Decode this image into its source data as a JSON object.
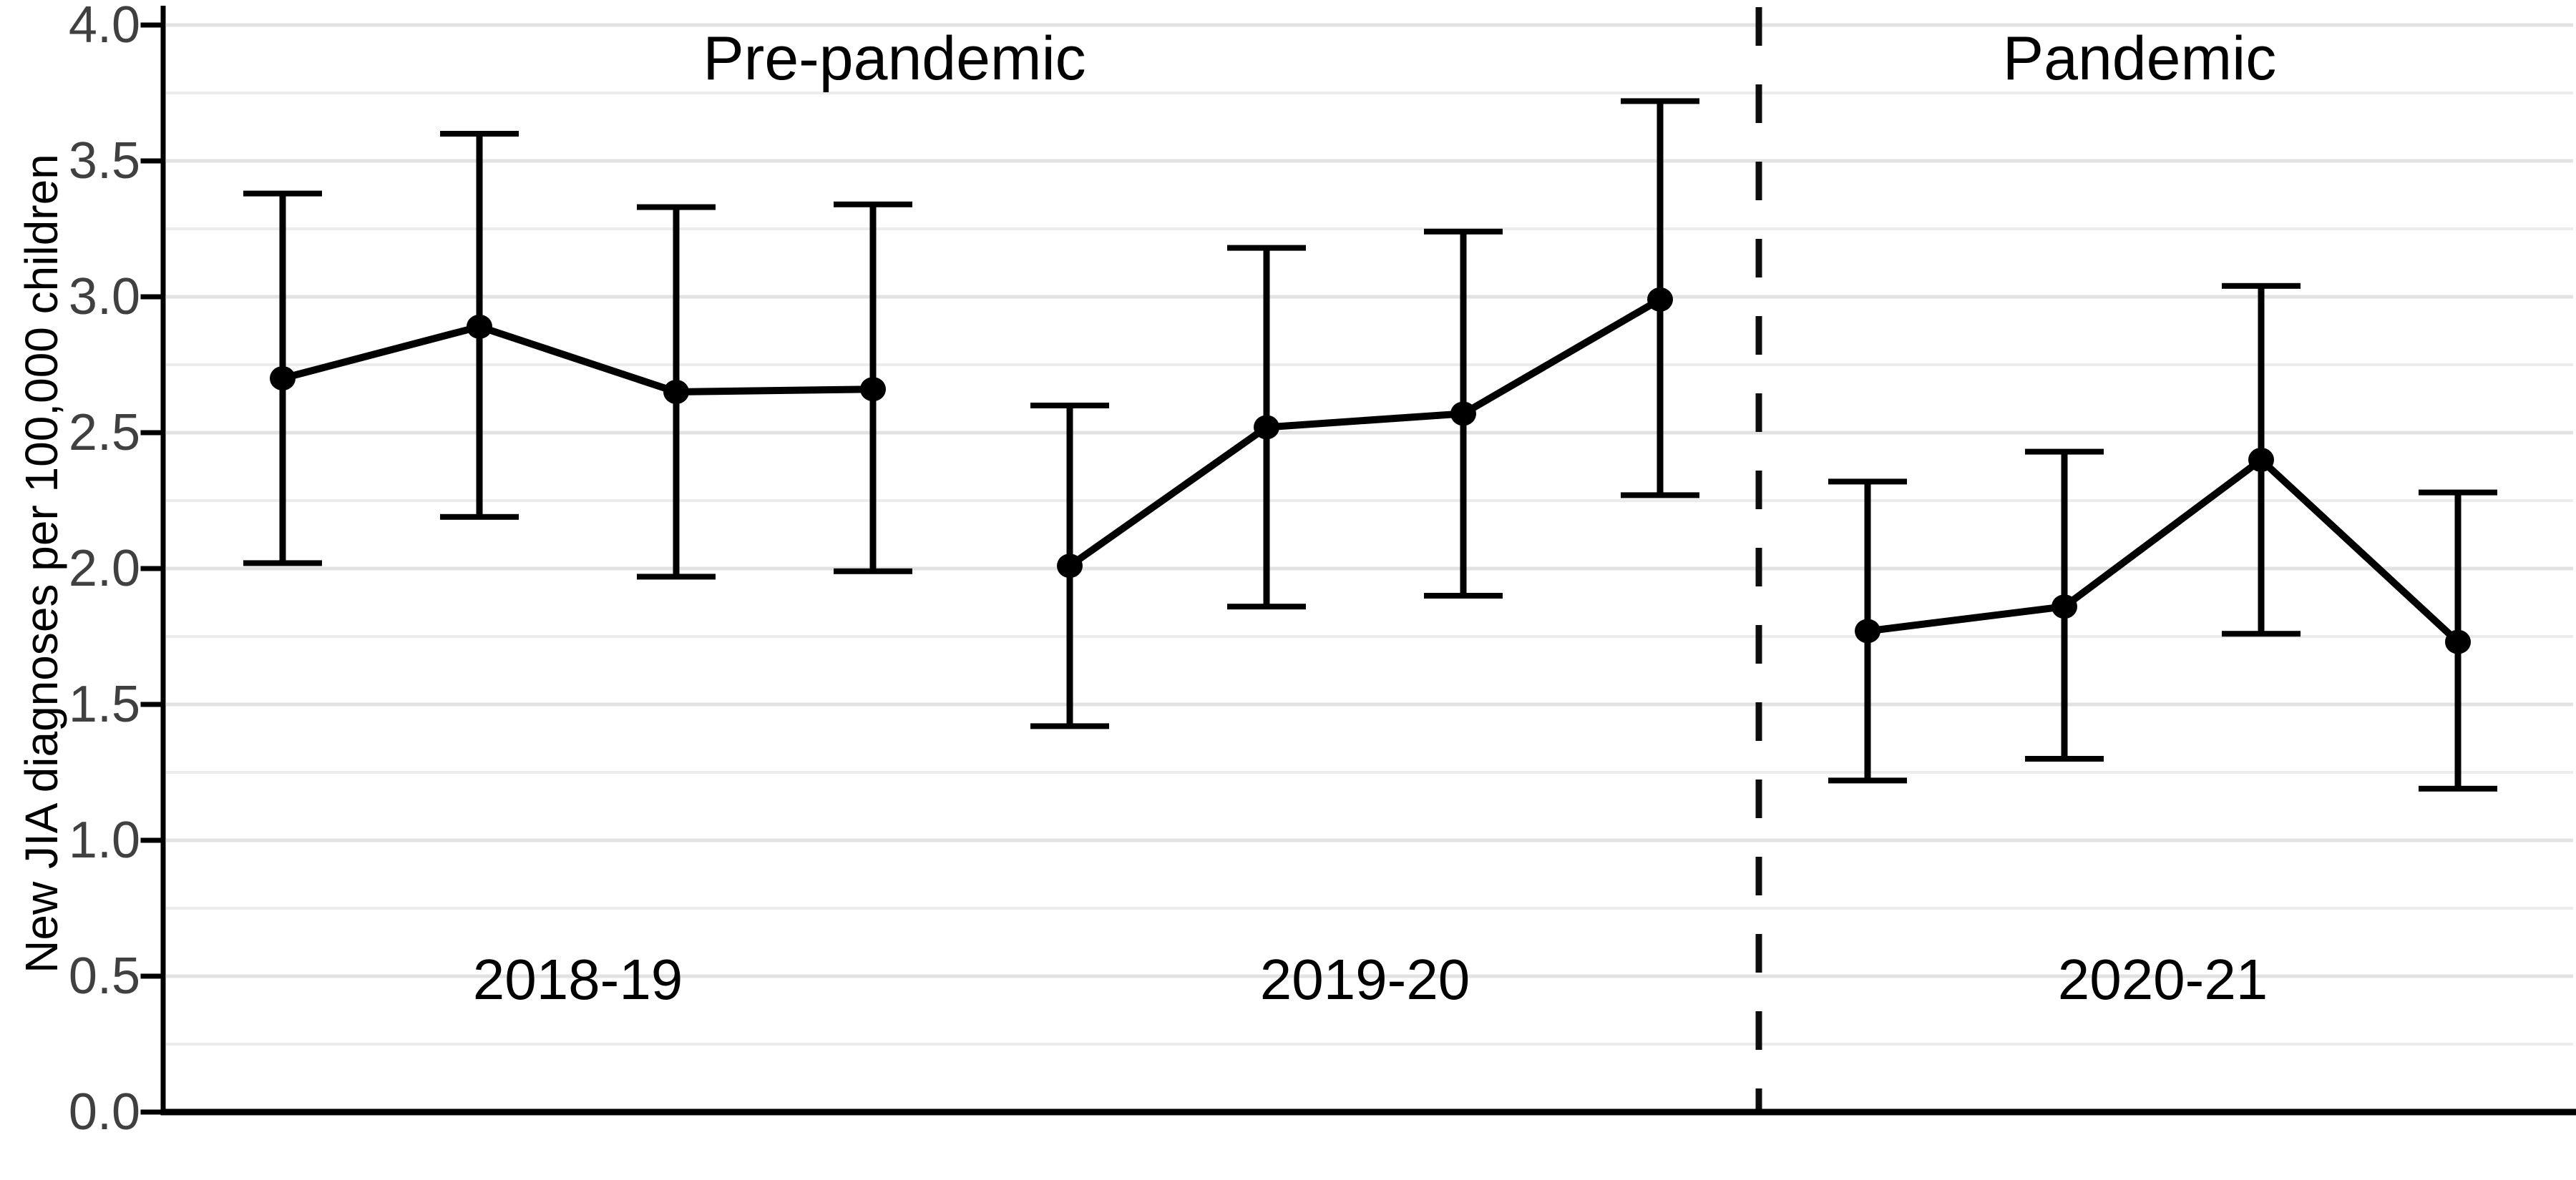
{
  "chart_data": {
    "type": "line",
    "title": "",
    "xlabel": "",
    "ylabel": "New JIA diagnoses per 100,000 children",
    "ylim": [
      0.0,
      4.0
    ],
    "y_ticks": [
      0.0,
      0.5,
      1.0,
      1.5,
      2.0,
      2.5,
      3.0,
      3.5,
      4.0
    ],
    "y_tick_labels": [
      "0.0",
      "0.5",
      "1.0",
      "1.5",
      "2.0",
      "2.5",
      "3.0",
      "3.5",
      "4.0"
    ],
    "grid": {
      "on": true,
      "major_step": 0.5,
      "minor_step": 0.25,
      "grid_max": 4.0
    },
    "legend_position": "none",
    "marker": "point-with-errorbar",
    "series_unit": "quarterly rate with 95% CI",
    "groups": [
      {
        "label": "2018-19",
        "points": [
          {
            "value": 2.7,
            "lo": 2.02,
            "hi": 3.38
          },
          {
            "value": 2.89,
            "lo": 2.19,
            "hi": 3.6
          },
          {
            "value": 2.65,
            "lo": 1.97,
            "hi": 3.33
          },
          {
            "value": 2.66,
            "lo": 1.99,
            "hi": 3.34
          }
        ]
      },
      {
        "label": "2019-20",
        "points": [
          {
            "value": 2.01,
            "lo": 1.42,
            "hi": 2.6
          },
          {
            "value": 2.52,
            "lo": 1.86,
            "hi": 3.18
          },
          {
            "value": 2.57,
            "lo": 1.9,
            "hi": 3.24
          },
          {
            "value": 2.99,
            "lo": 2.27,
            "hi": 3.72
          }
        ]
      },
      {
        "label": "2020-21",
        "points": [
          {
            "value": 1.77,
            "lo": 1.22,
            "hi": 2.32
          },
          {
            "value": 1.86,
            "lo": 1.3,
            "hi": 2.43
          },
          {
            "value": 2.4,
            "lo": 1.76,
            "hi": 3.04
          },
          {
            "value": 1.73,
            "lo": 1.19,
            "hi": 2.28
          }
        ]
      }
    ],
    "annotations": [
      {
        "text": "Pre-pandemic",
        "region": "left-of-divider"
      },
      {
        "text": "Pandemic",
        "region": "right-of-divider"
      }
    ],
    "divider": {
      "style": "dashed",
      "between_points": [
        8,
        9
      ]
    },
    "colors": {
      "data": "#000000",
      "axis": "#000000",
      "divider": "#0d0d0d",
      "tick_text": "#404040",
      "grid_major": "#e2e2e2",
      "grid_minor": "#ececec",
      "background": "#ffffff"
    }
  }
}
